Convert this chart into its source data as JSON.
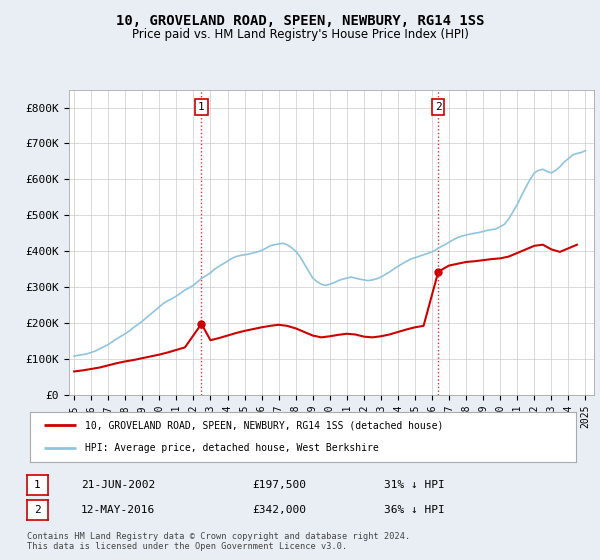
{
  "title": "10, GROVELAND ROAD, SPEEN, NEWBURY, RG14 1SS",
  "subtitle": "Price paid vs. HM Land Registry's House Price Index (HPI)",
  "legend_line1": "10, GROVELAND ROAD, SPEEN, NEWBURY, RG14 1SS (detached house)",
  "legend_line2": "HPI: Average price, detached house, West Berkshire",
  "footnote": "Contains HM Land Registry data © Crown copyright and database right 2024.\nThis data is licensed under the Open Government Licence v3.0.",
  "transaction1": {
    "label": "1",
    "date": "21-JUN-2002",
    "price": "£197,500",
    "pct": "31% ↓ HPI"
  },
  "transaction2": {
    "label": "2",
    "date": "12-MAY-2016",
    "price": "£342,000",
    "pct": "36% ↓ HPI"
  },
  "hpi_color": "#8fc4e0",
  "price_color": "#cc0000",
  "marker_color": "#cc0000",
  "background_color": "#e8eef4",
  "plot_bg_color": "#ffffff",
  "ylim": [
    0,
    850000
  ],
  "yticks": [
    0,
    100000,
    200000,
    300000,
    400000,
    500000,
    600000,
    700000,
    800000
  ],
  "ytick_labels": [
    "£0",
    "£100K",
    "£200K",
    "£300K",
    "£400K",
    "£500K",
    "£600K",
    "£700K",
    "£800K"
  ],
  "xtick_years": [
    1995,
    1996,
    1997,
    1998,
    1999,
    2000,
    2001,
    2002,
    2003,
    2004,
    2005,
    2006,
    2007,
    2008,
    2009,
    2010,
    2011,
    2012,
    2013,
    2014,
    2015,
    2016,
    2017,
    2018,
    2019,
    2020,
    2021,
    2022,
    2023,
    2024,
    2025
  ],
  "hpi_x": [
    1995.0,
    1995.25,
    1995.5,
    1995.75,
    1996.0,
    1996.25,
    1996.5,
    1996.75,
    1997.0,
    1997.25,
    1997.5,
    1997.75,
    1998.0,
    1998.25,
    1998.5,
    1998.75,
    1999.0,
    1999.25,
    1999.5,
    1999.75,
    2000.0,
    2000.25,
    2000.5,
    2000.75,
    2001.0,
    2001.25,
    2001.5,
    2001.75,
    2002.0,
    2002.25,
    2002.5,
    2002.75,
    2003.0,
    2003.25,
    2003.5,
    2003.75,
    2004.0,
    2004.25,
    2004.5,
    2004.75,
    2005.0,
    2005.25,
    2005.5,
    2005.75,
    2006.0,
    2006.25,
    2006.5,
    2006.75,
    2007.0,
    2007.25,
    2007.5,
    2007.75,
    2008.0,
    2008.25,
    2008.5,
    2008.75,
    2009.0,
    2009.25,
    2009.5,
    2009.75,
    2010.0,
    2010.25,
    2010.5,
    2010.75,
    2011.0,
    2011.25,
    2011.5,
    2011.75,
    2012.0,
    2012.25,
    2012.5,
    2012.75,
    2013.0,
    2013.25,
    2013.5,
    2013.75,
    2014.0,
    2014.25,
    2014.5,
    2014.75,
    2015.0,
    2015.25,
    2015.5,
    2015.75,
    2016.0,
    2016.25,
    2016.5,
    2016.75,
    2017.0,
    2017.25,
    2017.5,
    2017.75,
    2018.0,
    2018.25,
    2018.5,
    2018.75,
    2019.0,
    2019.25,
    2019.5,
    2019.75,
    2020.0,
    2020.25,
    2020.5,
    2020.75,
    2021.0,
    2021.25,
    2021.5,
    2021.75,
    2022.0,
    2022.25,
    2022.5,
    2022.75,
    2023.0,
    2023.25,
    2023.5,
    2023.75,
    2024.0,
    2024.25,
    2024.5,
    2024.75,
    2025.0
  ],
  "hpi_y": [
    108000,
    110000,
    112000,
    114000,
    118000,
    122000,
    128000,
    134000,
    140000,
    148000,
    156000,
    163000,
    170000,
    178000,
    188000,
    196000,
    205000,
    215000,
    225000,
    235000,
    245000,
    255000,
    262000,
    268000,
    275000,
    283000,
    292000,
    298000,
    305000,
    315000,
    325000,
    332000,
    340000,
    350000,
    358000,
    365000,
    372000,
    380000,
    385000,
    388000,
    390000,
    392000,
    395000,
    398000,
    402000,
    408000,
    415000,
    418000,
    420000,
    422000,
    418000,
    410000,
    400000,
    385000,
    365000,
    345000,
    325000,
    315000,
    308000,
    305000,
    308000,
    312000,
    318000,
    322000,
    325000,
    328000,
    325000,
    322000,
    320000,
    318000,
    320000,
    323000,
    328000,
    335000,
    342000,
    350000,
    358000,
    365000,
    372000,
    378000,
    382000,
    386000,
    390000,
    394000,
    398000,
    405000,
    412000,
    418000,
    425000,
    432000,
    438000,
    442000,
    445000,
    448000,
    450000,
    452000,
    455000,
    458000,
    460000,
    462000,
    468000,
    475000,
    490000,
    510000,
    530000,
    555000,
    578000,
    600000,
    618000,
    625000,
    628000,
    622000,
    618000,
    625000,
    635000,
    648000,
    658000,
    668000,
    672000,
    675000,
    680000
  ],
  "price_x": [
    1995.0,
    1995.5,
    1996.0,
    1996.5,
    1997.0,
    1997.5,
    1998.0,
    1998.5,
    1999.0,
    1999.5,
    2000.0,
    2000.5,
    2001.0,
    2001.5,
    2002.47,
    2003.0,
    2003.5,
    2004.0,
    2004.5,
    2005.0,
    2005.5,
    2006.0,
    2006.5,
    2007.0,
    2007.5,
    2008.0,
    2008.5,
    2009.0,
    2009.5,
    2010.0,
    2010.5,
    2011.0,
    2011.5,
    2012.0,
    2012.5,
    2013.0,
    2013.5,
    2014.0,
    2014.5,
    2015.0,
    2015.5,
    2016.36,
    2016.8,
    2017.0,
    2017.5,
    2018.0,
    2018.5,
    2019.0,
    2019.5,
    2020.0,
    2020.5,
    2021.0,
    2021.5,
    2022.0,
    2022.5,
    2023.0,
    2023.5,
    2024.0,
    2024.5
  ],
  "price_y": [
    65000,
    68000,
    72000,
    76000,
    82000,
    88000,
    93000,
    97000,
    102000,
    107000,
    112000,
    118000,
    125000,
    132000,
    197500,
    152000,
    158000,
    165000,
    172000,
    178000,
    183000,
    188000,
    192000,
    195000,
    192000,
    185000,
    175000,
    165000,
    160000,
    163000,
    167000,
    170000,
    168000,
    162000,
    160000,
    163000,
    168000,
    175000,
    182000,
    188000,
    192000,
    342000,
    355000,
    360000,
    365000,
    370000,
    372000,
    375000,
    378000,
    380000,
    385000,
    395000,
    405000,
    415000,
    418000,
    405000,
    398000,
    408000,
    418000
  ],
  "t1_x": 2002.47,
  "t1_y": 197500,
  "t2_x": 2016.36,
  "t2_y": 342000,
  "t1_vline_x": 2002.47,
  "t2_vline_x": 2016.36,
  "xlim_left": 1994.7,
  "xlim_right": 2025.5
}
